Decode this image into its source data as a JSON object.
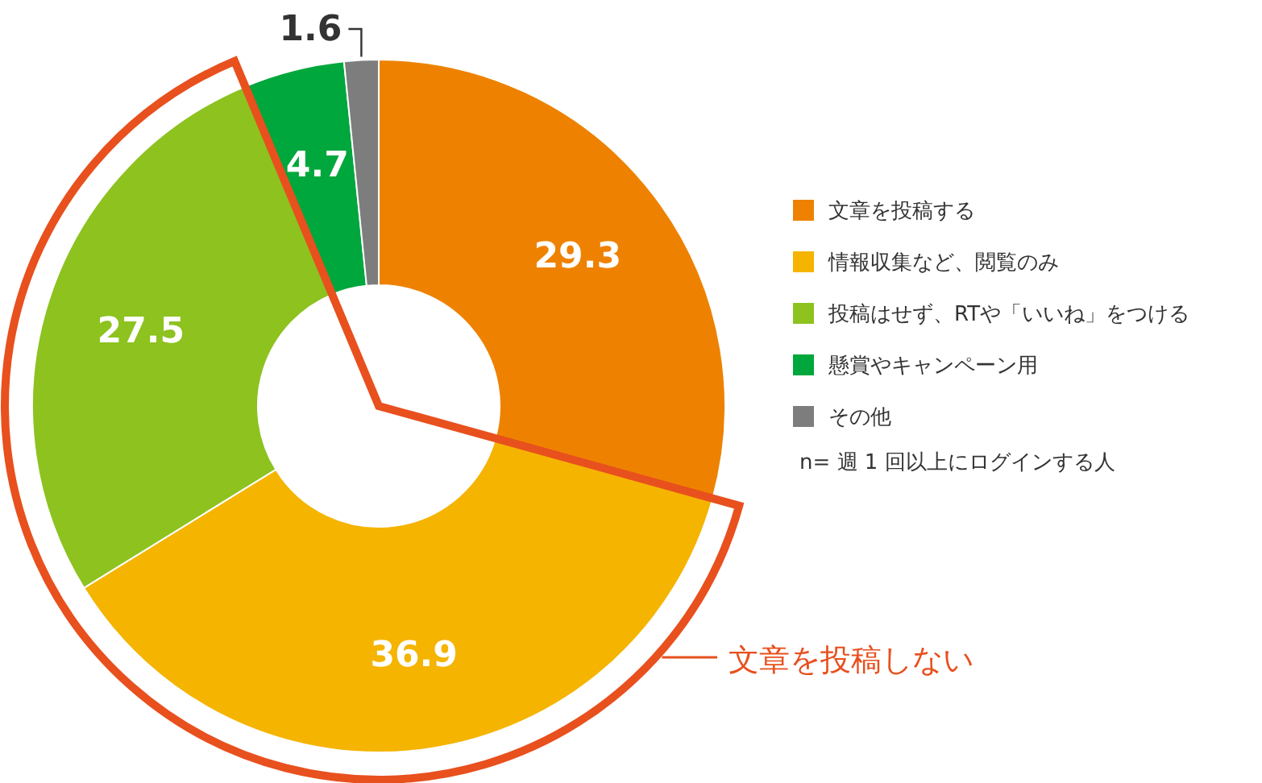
{
  "chart_data": {
    "type": "donut",
    "categories": [
      "文章を投稿する",
      "情報収集など、閲覧のみ",
      "投稿はせず、RTや「いいね」をつける",
      "懸賞やキャンペーン用",
      "その他"
    ],
    "values": [
      29.3,
      36.9,
      27.5,
      4.7,
      1.6
    ],
    "colors": [
      "#ee8200",
      "#f5b400",
      "#8dc21f",
      "#00a73c",
      "#7d7d7d"
    ],
    "data_labels": true,
    "legend": "right",
    "annotations": [
      "文章を投稿しない",
      "n= 週 1 回以上にログインする人"
    ]
  }
}
